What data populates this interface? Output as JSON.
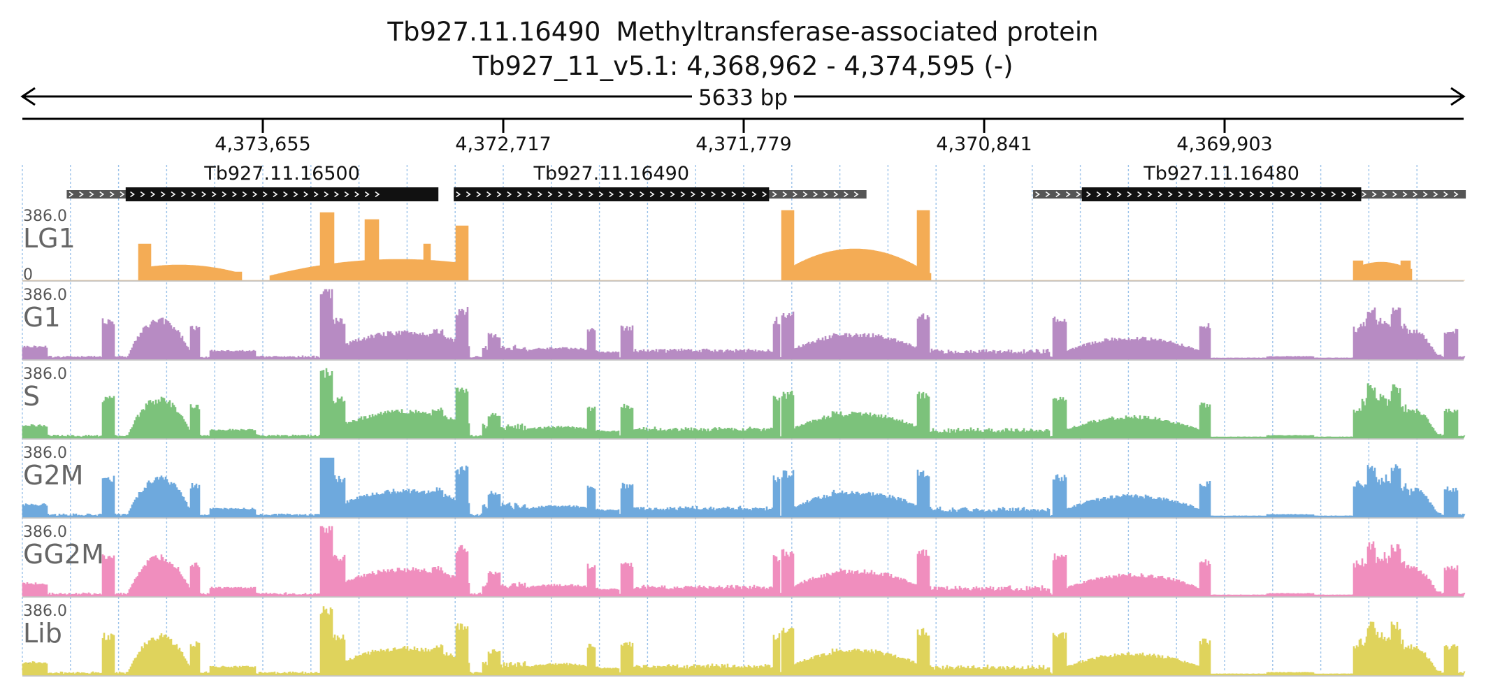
{
  "title": {
    "gene_id": "Tb927.11.16490",
    "gene_product": "Methyltransferase-associated protein",
    "locus": "Tb927_11_v5.1: 4,368,962 - 4,374,595 (-)"
  },
  "scale": {
    "length_label": "5633 bp",
    "ticks": [
      {
        "pos": 4373655,
        "label": "4,373,655"
      },
      {
        "pos": 4372717,
        "label": "4,372,717"
      },
      {
        "pos": 4371779,
        "label": "4,371,779"
      },
      {
        "pos": 4370841,
        "label": "4,370,841"
      },
      {
        "pos": 4369903,
        "label": "4,369,903"
      }
    ]
  },
  "region": {
    "start": 4368962,
    "end": 4374595,
    "strand": "-"
  },
  "genes": [
    {
      "name": "Tb927.11.16500",
      "utr": [
        4374420,
        4373170
      ],
      "cds": [
        4374190,
        4372970
      ]
    },
    {
      "name": "Tb927.11.16490",
      "utr": [
        4372910,
        4371300
      ],
      "cds": [
        4372910,
        4371680
      ]
    },
    {
      "name": "Tb927.11.16480",
      "utr": [
        4370650,
        4368962
      ],
      "cds": [
        4370460,
        4369370
      ]
    }
  ],
  "tracks_ymax_label": "386.0",
  "tracks_ymin_label": "0",
  "tracks": [
    {
      "name": "LG1",
      "color": "#f4ac55",
      "mode": "sparse"
    },
    {
      "name": "G1",
      "color": "#b78bc3",
      "mode": "full"
    },
    {
      "name": "S",
      "color": "#7cc27b",
      "mode": "full"
    },
    {
      "name": "G2M",
      "color": "#6ea9dd",
      "mode": "full"
    },
    {
      "name": "GG2M",
      "color": "#f08ebe",
      "mode": "full"
    },
    {
      "name": "Lib",
      "color": "#dfd35c",
      "mode": "full"
    }
  ]
}
